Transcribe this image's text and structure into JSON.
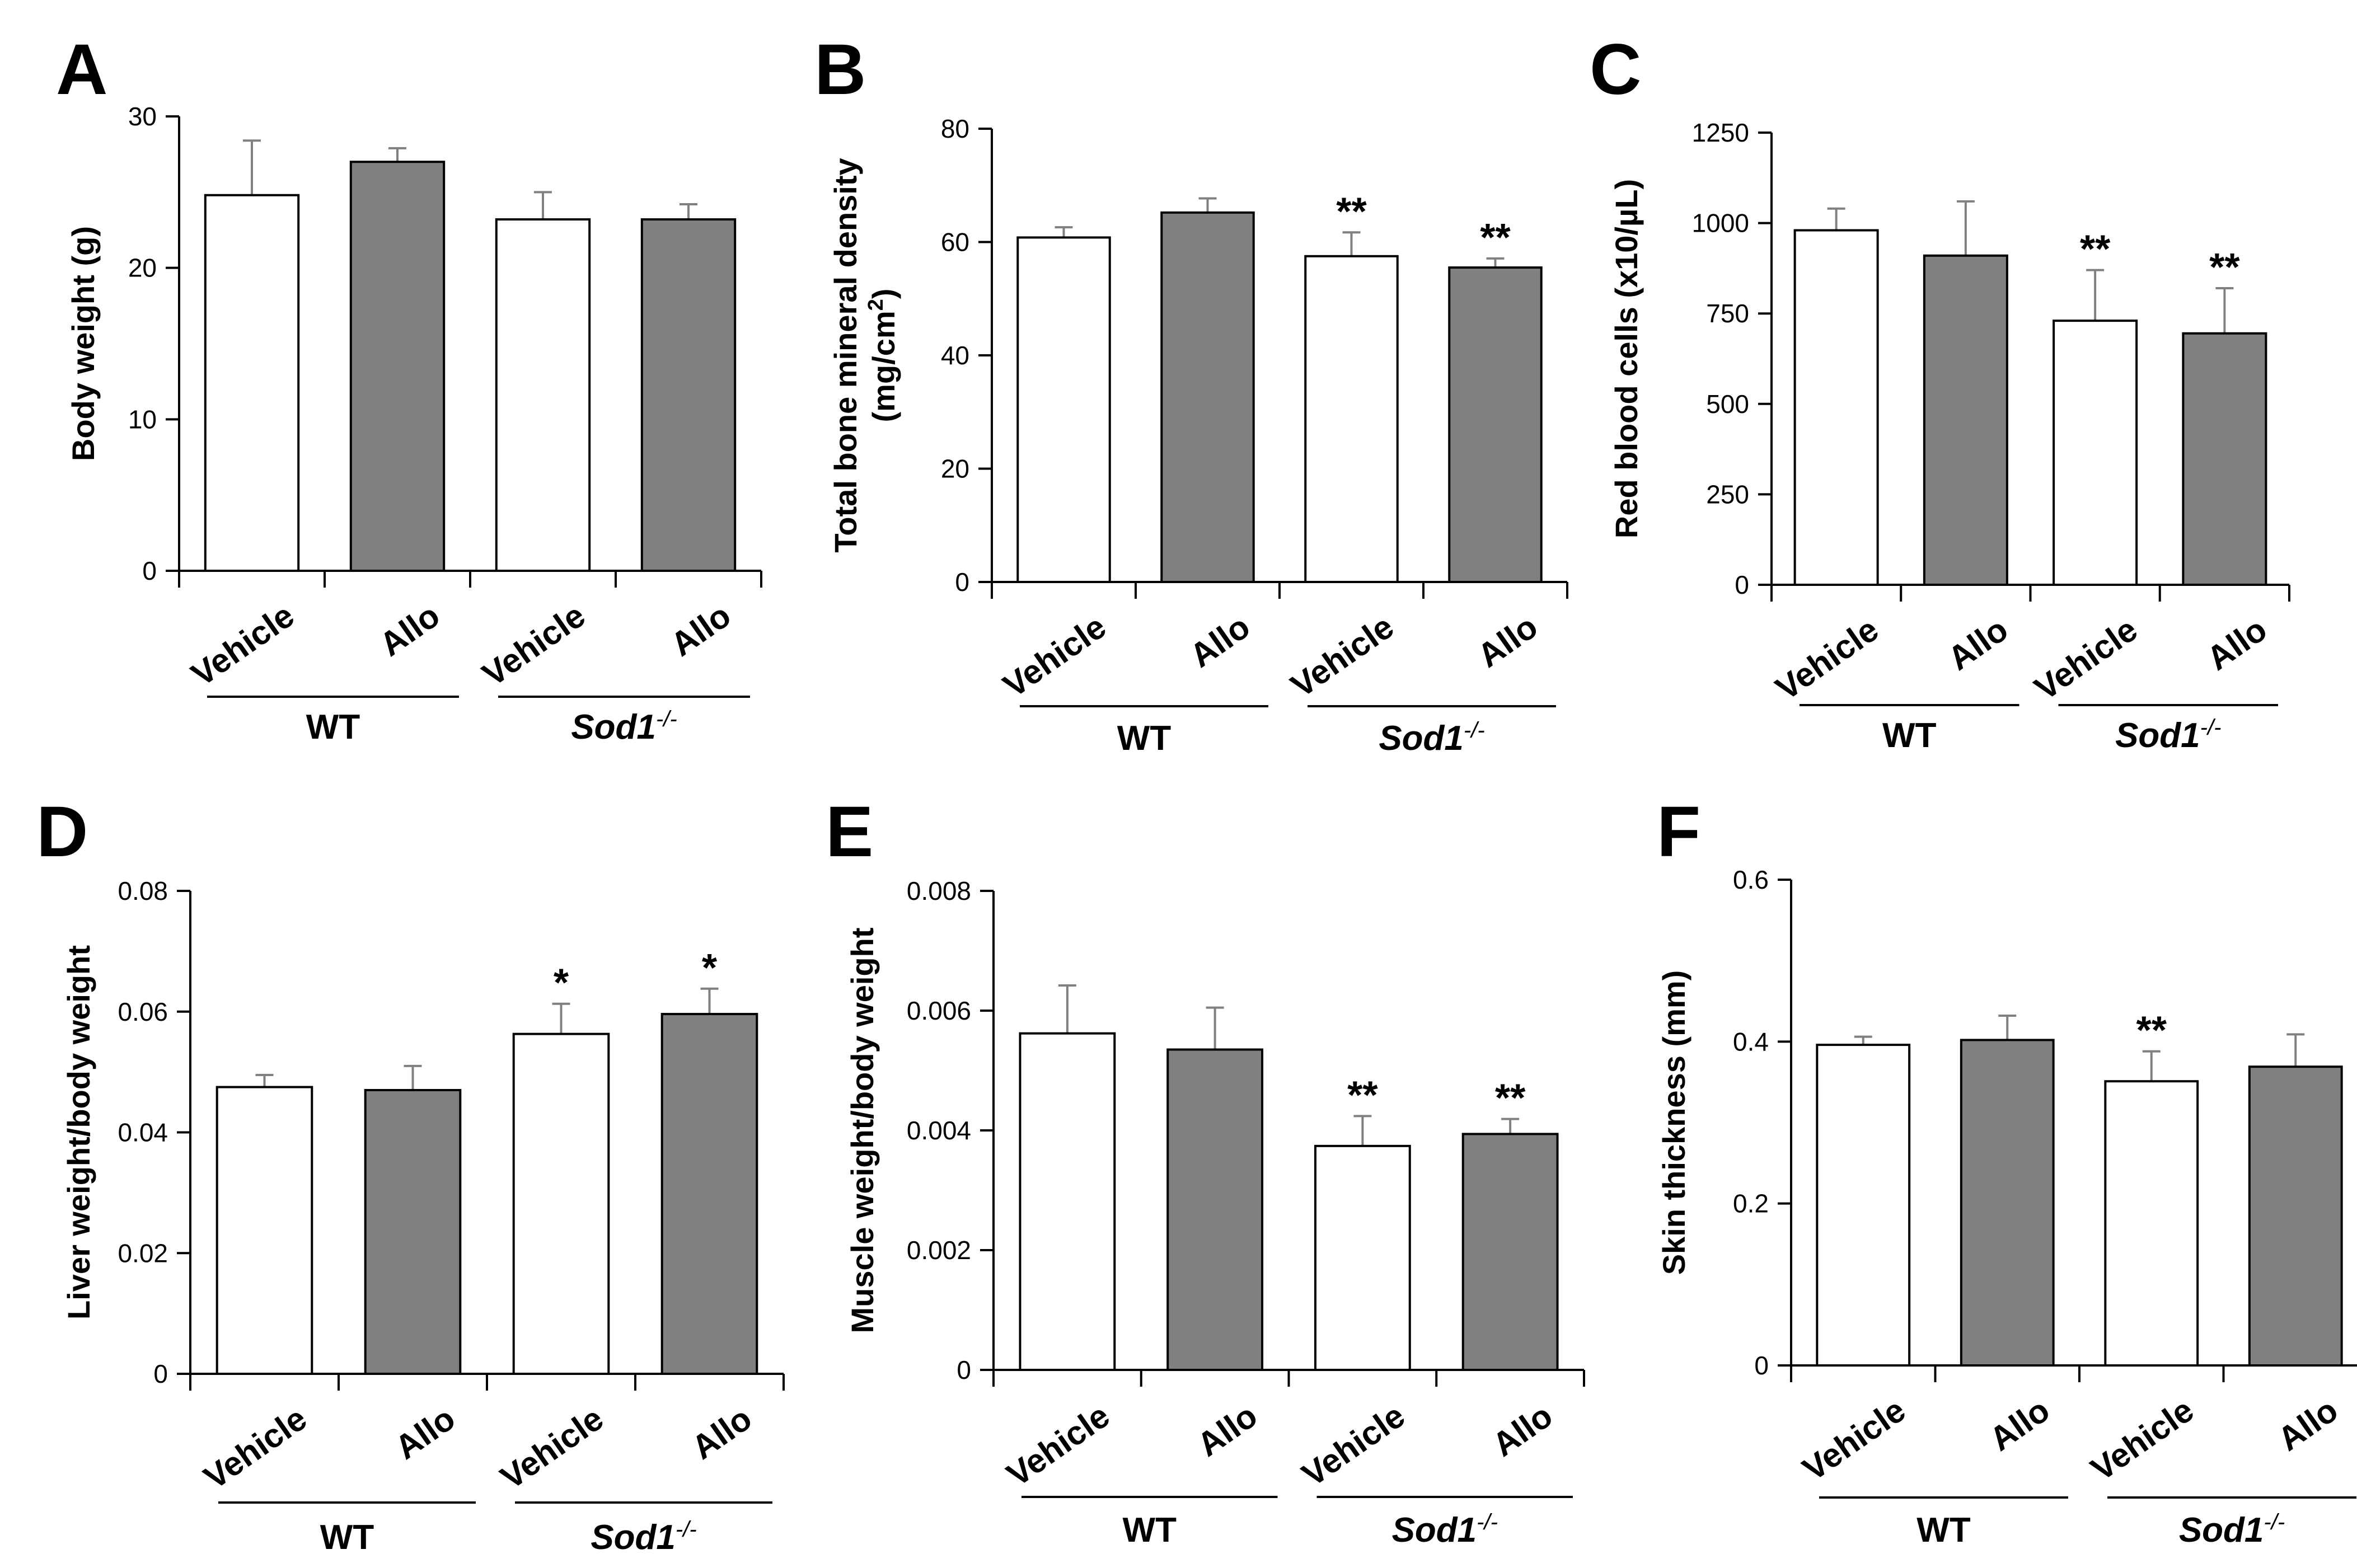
{
  "chart_data": [
    {
      "panel": "A",
      "type": "bar",
      "categories": [
        "Vehicle",
        "Allo",
        "Vehicle",
        "Allo"
      ],
      "groups": [
        {
          "label": "WT",
          "italic": false,
          "sup": ""
        },
        {
          "label": "Sod1",
          "italic": true,
          "sup": "-/-"
        }
      ],
      "values": [
        24.8,
        27.0,
        23.2,
        23.2
      ],
      "errors": [
        3.6,
        0.9,
        1.8,
        1.0
      ],
      "significance": [
        "",
        "",
        "",
        ""
      ],
      "ylabel": {
        "main": "Body weight (g)",
        "sup": "",
        "tail": ""
      },
      "ylim": [
        0,
        30
      ],
      "yticks": [
        0,
        10,
        20,
        30
      ],
      "ytick_labels": [
        "0",
        "10",
        "20",
        "30"
      ]
    },
    {
      "panel": "B",
      "type": "bar",
      "categories": [
        "Vehicle",
        "Allo",
        "Vehicle",
        "Allo"
      ],
      "groups": [
        {
          "label": "WT",
          "italic": false,
          "sup": ""
        },
        {
          "label": "Sod1",
          "italic": true,
          "sup": "-/-"
        }
      ],
      "values": [
        60.8,
        65.2,
        57.5,
        55.5
      ],
      "errors": [
        1.8,
        2.5,
        4.2,
        1.6
      ],
      "significance": [
        "",
        "",
        "**",
        "**"
      ],
      "ylabel": {
        "main": "Total bone mineral density",
        "line2": "(mg/cm",
        "sup": "2",
        "tail": ")"
      },
      "ylim": [
        0,
        80
      ],
      "yticks": [
        0,
        20,
        40,
        60,
        80
      ],
      "ytick_labels": [
        "0",
        "20",
        "40",
        "60",
        "80"
      ]
    },
    {
      "panel": "C",
      "type": "bar",
      "categories": [
        "Vehicle",
        "Allo",
        "Vehicle",
        "Allo"
      ],
      "groups": [
        {
          "label": "WT",
          "italic": false,
          "sup": ""
        },
        {
          "label": "Sod1",
          "italic": true,
          "sup": "-/-"
        }
      ],
      "values": [
        980,
        910,
        730,
        695
      ],
      "errors": [
        60,
        150,
        140,
        125
      ],
      "significance": [
        "",
        "",
        "**",
        "**"
      ],
      "ylabel": {
        "main": "Red blood cells (x10/µL)",
        "sup": "",
        "tail": ""
      },
      "ylim": [
        0,
        1250
      ],
      "yticks": [
        0,
        250,
        500,
        750,
        1000,
        1250
      ],
      "ytick_labels": [
        "0",
        "250",
        "500",
        "750",
        "1000",
        "1250"
      ]
    },
    {
      "panel": "D",
      "type": "bar",
      "categories": [
        "Vehicle",
        "Allo",
        "Vehicle",
        "Allo"
      ],
      "groups": [
        {
          "label": "WT",
          "italic": false,
          "sup": ""
        },
        {
          "label": "Sod1",
          "italic": true,
          "sup": "-/-"
        }
      ],
      "values": [
        0.0475,
        0.047,
        0.0563,
        0.0596
      ],
      "errors": [
        0.002,
        0.004,
        0.005,
        0.0042
      ],
      "significance": [
        "",
        "",
        "*",
        "*"
      ],
      "ylabel": {
        "main": "Liver weight/body weight",
        "sup": "",
        "tail": ""
      },
      "ylim": [
        0,
        0.08
      ],
      "yticks": [
        0,
        0.02,
        0.04,
        0.06,
        0.08
      ],
      "ytick_labels": [
        "0",
        "0.02",
        "0.04",
        "0.06",
        "0.08"
      ]
    },
    {
      "panel": "E",
      "type": "bar",
      "categories": [
        "Vehicle",
        "Allo",
        "Vehicle",
        "Allo"
      ],
      "groups": [
        {
          "label": "WT",
          "italic": false,
          "sup": ""
        },
        {
          "label": "Sod1",
          "italic": true,
          "sup": "-/-"
        }
      ],
      "values": [
        0.00562,
        0.00535,
        0.00374,
        0.00394
      ],
      "errors": [
        0.0008,
        0.0007,
        0.0005,
        0.00025
      ],
      "significance": [
        "",
        "",
        "**",
        "**"
      ],
      "ylabel": {
        "main": "Muscle weight/body weight",
        "sup": "",
        "tail": ""
      },
      "ylim": [
        0,
        0.008
      ],
      "yticks": [
        0,
        0.002,
        0.004,
        0.006,
        0.008
      ],
      "ytick_labels": [
        "0",
        "0.002",
        "0.004",
        "0.006",
        "0.008"
      ]
    },
    {
      "panel": "F",
      "type": "bar",
      "categories": [
        "Vehicle",
        "Allo",
        "Vehicle",
        "Allo"
      ],
      "groups": [
        {
          "label": "WT",
          "italic": false,
          "sup": ""
        },
        {
          "label": "Sod1",
          "italic": true,
          "sup": "-/-"
        }
      ],
      "values": [
        0.396,
        0.402,
        0.351,
        0.369
      ],
      "errors": [
        0.01,
        0.03,
        0.037,
        0.04
      ],
      "significance": [
        "",
        "",
        "**",
        ""
      ],
      "ylabel": {
        "main": "Skin thickness (mm)",
        "sup": "",
        "tail": ""
      },
      "ylim": [
        0,
        0.6
      ],
      "yticks": [
        0,
        0.2,
        0.4,
        0.6
      ],
      "ytick_labels": [
        "0",
        "0.2",
        "0.4",
        "0.6"
      ]
    }
  ],
  "colors": {
    "vehicle_fill": "#ffffff",
    "allo_fill": "#808080",
    "stroke": "#000000",
    "error_bar": "#808080"
  }
}
